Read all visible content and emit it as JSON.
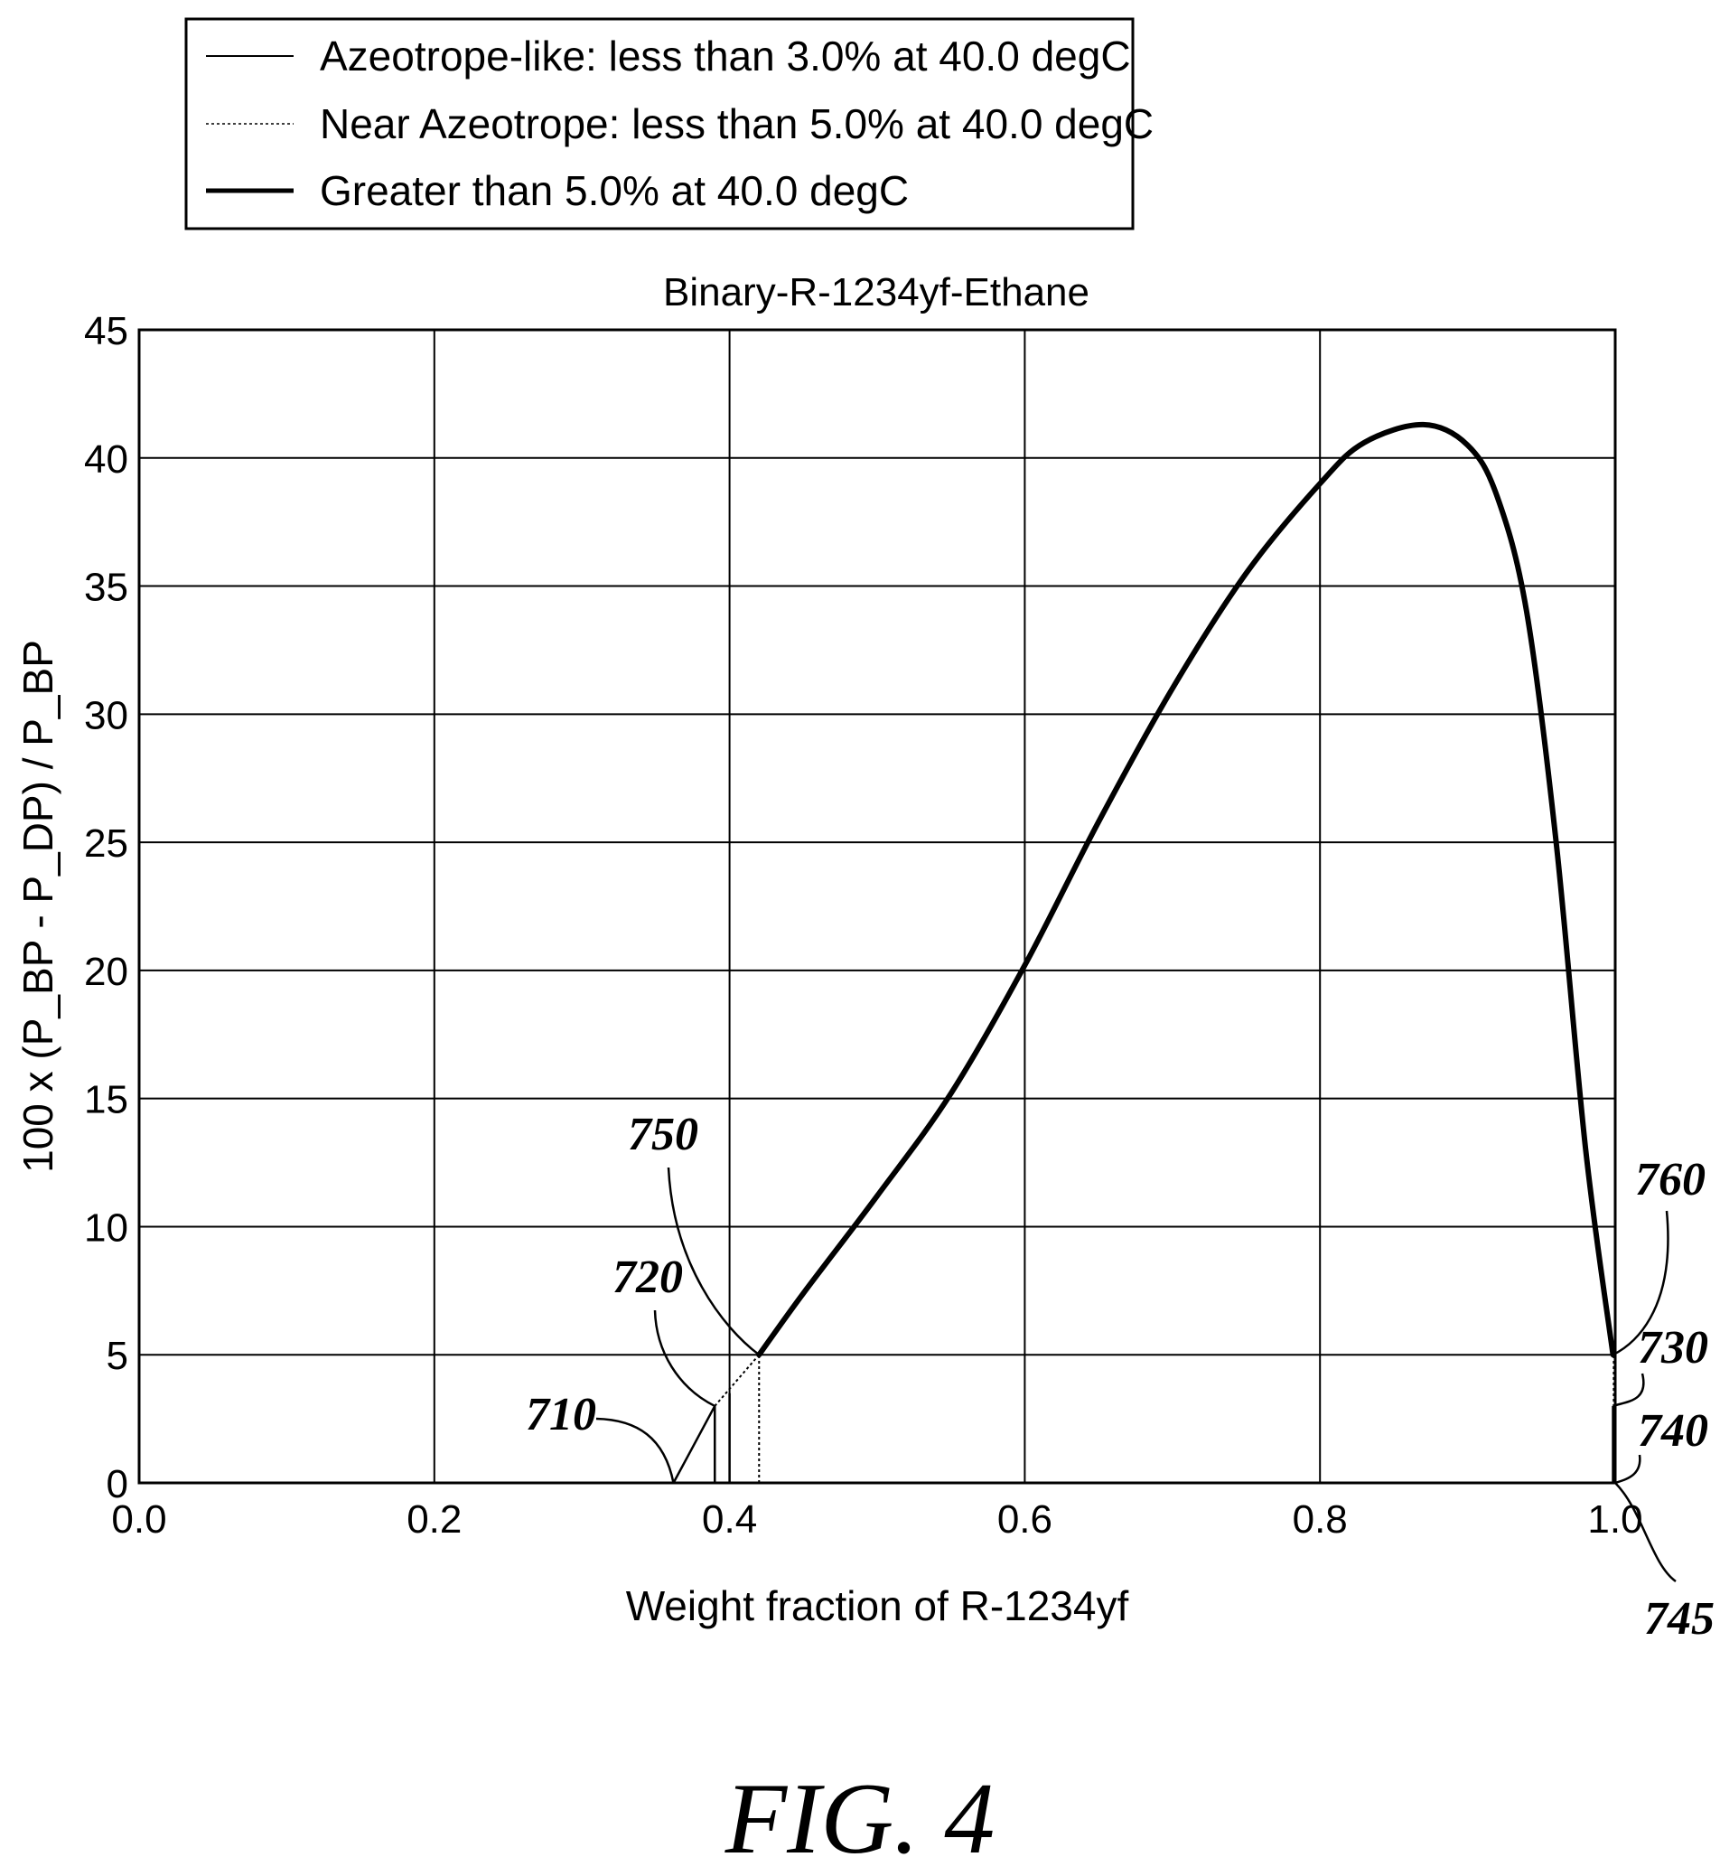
{
  "chart_data": {
    "type": "line",
    "title": "Binary-R-1234yf-Ethane",
    "xlabel": "Weight fraction of R-1234yf",
    "ylabel": "100 x (P_BP - P_DP) / P_BP",
    "xlim": [
      0.0,
      1.0
    ],
    "ylim": [
      0,
      45
    ],
    "x_ticks": [
      "0.0",
      "0.2",
      "0.4",
      "0.6",
      "0.8",
      "1.0"
    ],
    "x_tick_values": [
      0.0,
      0.2,
      0.4,
      0.6,
      0.8,
      1.0
    ],
    "y_ticks": [
      "0",
      "5",
      "10",
      "15",
      "20",
      "25",
      "30",
      "35",
      "40",
      "45"
    ],
    "y_tick_values": [
      0,
      5,
      10,
      15,
      20,
      25,
      30,
      35,
      40,
      45
    ],
    "grid": true,
    "legend_position": "top-left, above plot",
    "series": [
      {
        "name": "Azeotrope-like: less than 3.0% at 40.0 degC",
        "style": "thin-solid",
        "segments": [
          [
            [
              0.362,
              0.0
            ],
            [
              0.39,
              3.0
            ]
          ],
          [
            [
              0.39,
              0.0
            ],
            [
              0.39,
              3.0
            ]
          ],
          [
            [
              0.4,
              0.0
            ],
            [
              0.4,
              3.5
            ]
          ],
          [
            [
              0.9985,
              0.0
            ],
            [
              0.9985,
              3.0
            ]
          ]
        ]
      },
      {
        "name": "Near Azeotrope: less than 5.0% at 40.0 degC",
        "style": "dotted",
        "segments": [
          [
            [
              0.39,
              3.0
            ],
            [
              0.42,
              5.0
            ]
          ],
          [
            [
              0.42,
              0.0
            ],
            [
              0.42,
              5.0
            ]
          ],
          [
            [
              0.999,
              0.0
            ],
            [
              0.999,
              5.0
            ]
          ]
        ]
      },
      {
        "name": "Greater than 5.0% at 40.0 degC",
        "style": "thick-solid",
        "points": [
          [
            0.42,
            5.0
          ],
          [
            0.45,
            7.4
          ],
          [
            0.5,
            11.2
          ],
          [
            0.55,
            15.2
          ],
          [
            0.6,
            20.2
          ],
          [
            0.65,
            25.8
          ],
          [
            0.7,
            31.0
          ],
          [
            0.75,
            35.5
          ],
          [
            0.8,
            39.0
          ],
          [
            0.83,
            40.6
          ],
          [
            0.87,
            41.3
          ],
          [
            0.9,
            40.5
          ],
          [
            0.92,
            38.5
          ],
          [
            0.94,
            34.0
          ],
          [
            0.96,
            25.0
          ],
          [
            0.98,
            13.0
          ],
          [
            0.9985,
            5.0
          ]
        ]
      }
    ],
    "annotations": [
      {
        "label": "710",
        "x": 0.362,
        "y": 0.0
      },
      {
        "label": "720",
        "x": 0.39,
        "y": 3.0
      },
      {
        "label": "750",
        "x": 0.42,
        "y": 5.0
      },
      {
        "label": "760",
        "x": 0.9985,
        "y": 5.0
      },
      {
        "label": "730",
        "x": 0.9985,
        "y": 3.0
      },
      {
        "label": "740",
        "x": 1.0,
        "y": 0.0
      },
      {
        "label": "745",
        "x": 1.0,
        "y": 0.0
      }
    ]
  },
  "figure_label": "FIG. 4"
}
